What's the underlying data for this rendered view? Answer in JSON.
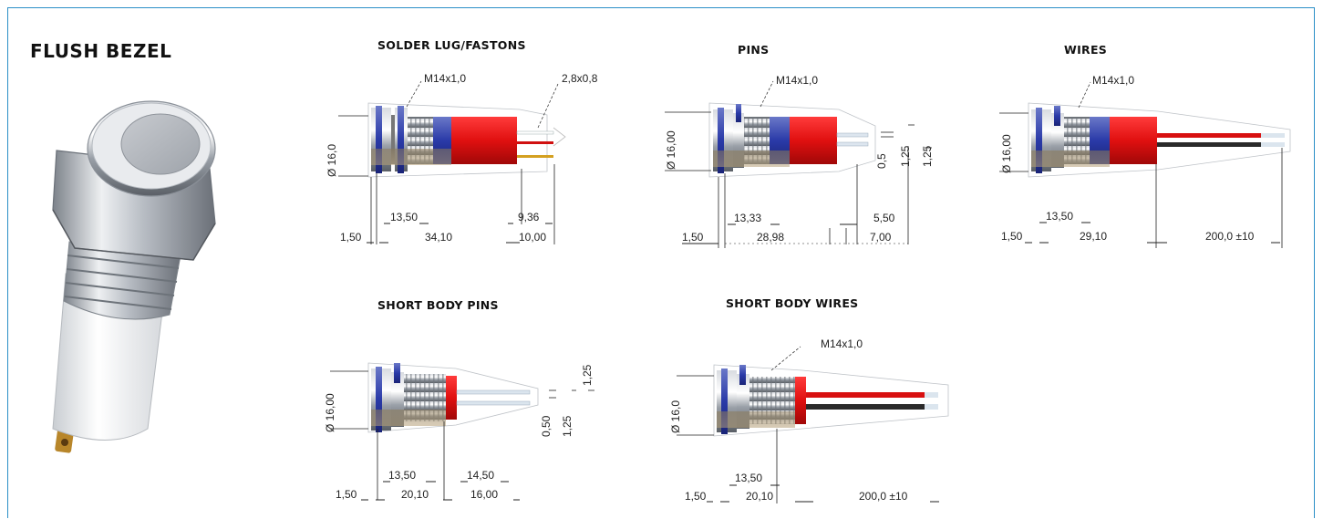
{
  "title": "FLUSH BEZEL",
  "sections": {
    "solder": {
      "title": "SOLDER LUG/FASTONS",
      "thread": "M14x1,0",
      "lug": "2,8x0,8",
      "diameter": "Ø 16,0",
      "body": "13,50",
      "lug_len": "9,36",
      "total": "34,10",
      "end": "10,00",
      "bezel": "1,50"
    },
    "pins": {
      "title": "PINS",
      "thread": "M14x1,0",
      "diameter": "Ø 16,00",
      "body": "13,33",
      "pin_len": "5,50",
      "total": "28,98",
      "end": "7,00",
      "bezel": "1,50",
      "pin_d": "0,5",
      "pitch1": "1,25",
      "pitch2": "1,25"
    },
    "wires": {
      "title": "WIRES",
      "thread": "M14x1,0",
      "diameter": "Ø 16,00",
      "body": "13,50",
      "total": "29,10",
      "wire_len": "200,0 ±10",
      "bezel": "1,50"
    },
    "short_pins": {
      "title": "SHORT BODY PINS",
      "diameter": "Ø 16,00",
      "body": "13,50",
      "pin_len": "14,50",
      "total": "20,10",
      "end": "16,00",
      "bezel": "1,50",
      "pin_d": "0,50",
      "pitch1": "1,25",
      "pitch2": "1,25"
    },
    "short_wires": {
      "title": "SHORT BODY WIRES",
      "thread": "M14x1,0",
      "diameter": "Ø 16,0",
      "body": "13,50",
      "total": "20,10",
      "wire_len": "200,0 ±10",
      "bezel": "1,50"
    }
  }
}
